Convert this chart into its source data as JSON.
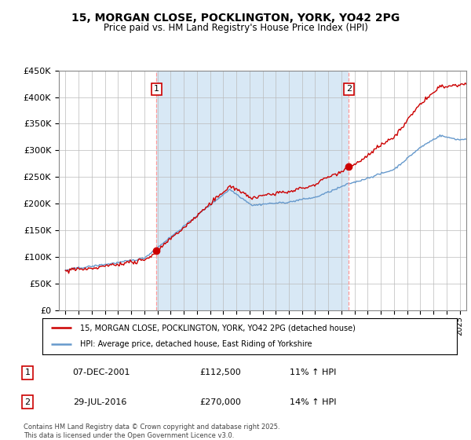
{
  "title": "15, MORGAN CLOSE, POCKLINGTON, YORK, YO42 2PG",
  "subtitle": "Price paid vs. HM Land Registry's House Price Index (HPI)",
  "legend_line1": "15, MORGAN CLOSE, POCKLINGTON, YORK, YO42 2PG (detached house)",
  "legend_line2": "HPI: Average price, detached house, East Riding of Yorkshire",
  "marker1_date": "07-DEC-2001",
  "marker1_price": "£112,500",
  "marker1_hpi": "11% ↑ HPI",
  "marker2_date": "29-JUL-2016",
  "marker2_price": "£270,000",
  "marker2_hpi": "14% ↑ HPI",
  "footer": "Contains HM Land Registry data © Crown copyright and database right 2025.\nThis data is licensed under the Open Government Licence v3.0.",
  "line_color_red": "#cc0000",
  "line_color_blue": "#6699cc",
  "shade_color": "#d8e8f5",
  "marker1_x_year": 2001.92,
  "marker2_x_year": 2016.57,
  "ylim_min": 0,
  "ylim_max": 450000,
  "xlim_min": 1994.5,
  "xlim_max": 2025.5
}
